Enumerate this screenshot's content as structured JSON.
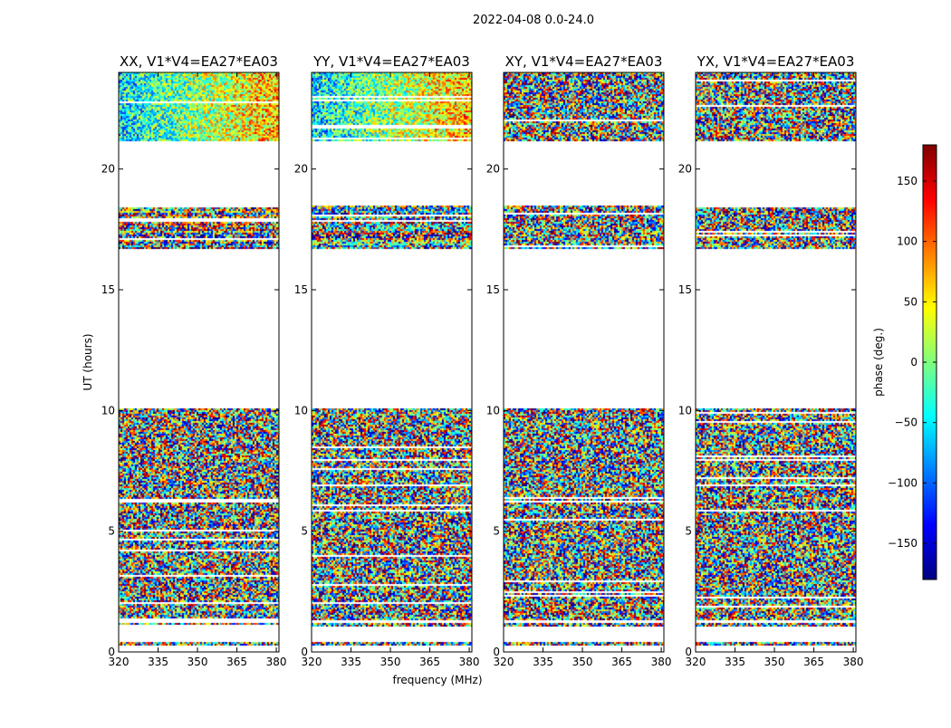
{
  "figure": {
    "suptitle": "2022-04-08 0.0-24.0",
    "xlabel": "frequency (MHz)",
    "ylabel": "UT (hours)",
    "colorbar_label": "phase (deg.)",
    "colorbar_ticks": [
      "150",
      "100",
      "50",
      "0",
      "−50",
      "−100",
      "−150"
    ],
    "colorbar_ticks_values": [
      150,
      100,
      50,
      0,
      -50,
      -100,
      -150
    ],
    "colorbar_range": [
      -180,
      180
    ],
    "colormap": [
      "#00007f",
      "#0000ff",
      "#007fff",
      "#00ffff",
      "#7fff7f",
      "#ffff00",
      "#ff7f00",
      "#ff0000",
      "#7f0000"
    ]
  },
  "chart_data": {
    "type": "heatmap",
    "title": "2022-04-08 0.0-24.0",
    "xlabel": "frequency (MHz)",
    "ylabel": "UT (hours)",
    "xlim": [
      320,
      381
    ],
    "ylim": [
      0,
      24
    ],
    "x_ticks": [
      320,
      335,
      350,
      365,
      380
    ],
    "x_tick_labels": [
      "320",
      "335",
      "350",
      "365",
      "380"
    ],
    "y_ticks": [
      0,
      5,
      10,
      15,
      20
    ],
    "y_tick_labels": [
      "0",
      "5",
      "10",
      "15",
      "20"
    ],
    "value_label": "phase (deg.)",
    "value_range": [
      -180,
      180
    ],
    "data_bands_ut_hours": [
      [
        0.3,
        0.4
      ],
      [
        1.1,
        1.2
      ],
      [
        1.3,
        10.1
      ],
      [
        16.7,
        18.5
      ],
      [
        21.2,
        24.0
      ]
    ],
    "panels": [
      {
        "title": "XX, V1*V4=EA27*EA03",
        "kind": "parallel"
      },
      {
        "title": "YY, V1*V4=EA27*EA03",
        "kind": "parallel"
      },
      {
        "title": "XY, V1*V4=EA27*EA03",
        "kind": "cross"
      },
      {
        "title": "YX, V1*V4=EA27*EA03",
        "kind": "cross"
      }
    ]
  }
}
